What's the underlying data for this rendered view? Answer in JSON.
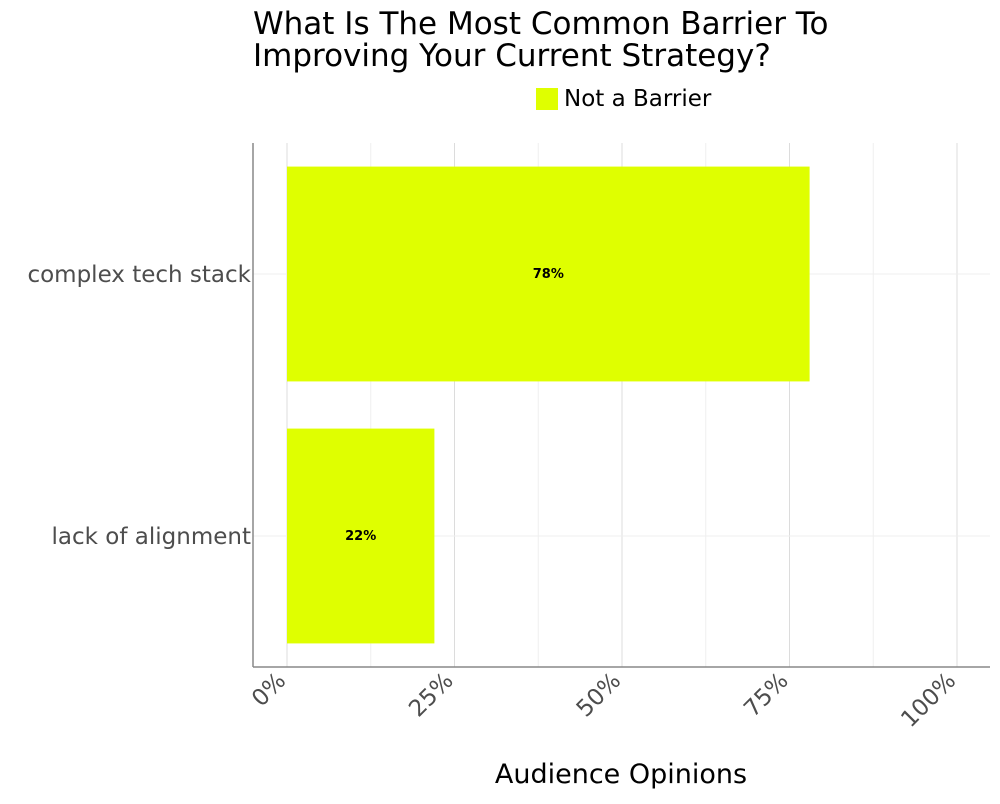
{
  "chart_data": {
    "type": "bar",
    "orientation": "horizontal",
    "title": "What Is The Most Common Barrier To Improving Your Current Strategy?",
    "title_lines": [
      "What Is The Most Common Barrier To",
      "Improving Your Current Strategy?"
    ],
    "xlabel": "Audience Opinions",
    "ylabel": "",
    "categories": [
      "complex tech stack",
      "lack of alignment"
    ],
    "series": [
      {
        "name": "Not a Barrier",
        "values": [
          78,
          22
        ],
        "color": "#DFFF00"
      }
    ],
    "data_labels": [
      "78%",
      "22%"
    ],
    "xlim": [
      0,
      100
    ],
    "x_ticks": [
      0,
      25,
      50,
      75,
      100
    ],
    "x_tick_labels": [
      "0%",
      "25%",
      "50%",
      "75%",
      "100%"
    ],
    "grid": true,
    "legend_position": "top"
  }
}
